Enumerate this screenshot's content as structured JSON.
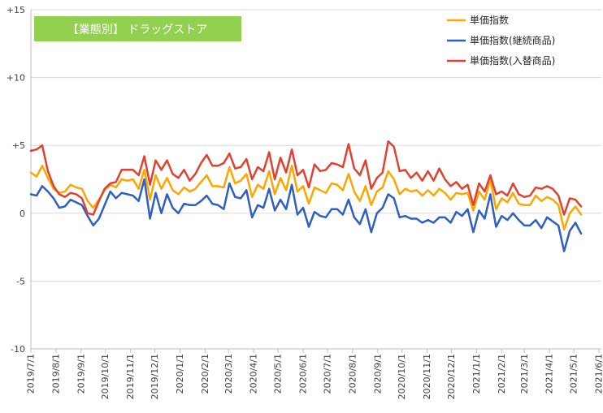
{
  "chart_data": {
    "type": "line",
    "title": "【業態別】 ドラッグストア",
    "title_box_color": "#92D050",
    "ylim": [
      -10,
      15
    ],
    "y_tick_labels": [
      "+15",
      "+10",
      "+5",
      "0",
      "-5",
      "-10"
    ],
    "xlim": [
      "2019/7/1",
      "2021/6/1"
    ],
    "x_tick_labels": [
      "2019/7/1",
      "2019/8/1",
      "2019/9/1",
      "2019/10/1",
      "2019/11/1",
      "2019/12/1",
      "2020/1/1",
      "2020/2/1",
      "2020/3/1",
      "2020/4/1",
      "2020/5/1",
      "2020/6/1",
      "2020/7/1",
      "2020/8/1",
      "2020/9/1",
      "2020/10/1",
      "2020/11/1",
      "2020/12/1",
      "2021/1/1",
      "2021/2/1",
      "2021/3/1",
      "2021/4/1",
      "2021/5/1",
      "2021/6/1"
    ],
    "grid": "horizontal",
    "legend_position": "top-right",
    "x": [
      "2019/7/1",
      "2019/7/8",
      "2019/7/15",
      "2019/7/22",
      "2019/7/29",
      "2019/8/5",
      "2019/8/12",
      "2019/8/19",
      "2019/8/26",
      "2019/9/2",
      "2019/9/9",
      "2019/9/16",
      "2019/9/23",
      "2019/9/30",
      "2019/10/7",
      "2019/10/14",
      "2019/10/21",
      "2019/10/28",
      "2019/11/4",
      "2019/11/11",
      "2019/11/18",
      "2019/11/25",
      "2019/12/2",
      "2019/12/9",
      "2019/12/16",
      "2019/12/23",
      "2019/12/30",
      "2020/1/6",
      "2020/1/13",
      "2020/1/20",
      "2020/1/27",
      "2020/2/3",
      "2020/2/10",
      "2020/2/17",
      "2020/2/24",
      "2020/3/2",
      "2020/3/9",
      "2020/3/16",
      "2020/3/23",
      "2020/3/30",
      "2020/4/6",
      "2020/4/13",
      "2020/4/20",
      "2020/4/27",
      "2020/5/4",
      "2020/5/11",
      "2020/5/18",
      "2020/5/25",
      "2020/6/1",
      "2020/6/8",
      "2020/6/15",
      "2020/6/22",
      "2020/6/29",
      "2020/7/6",
      "2020/7/13",
      "2020/7/20",
      "2020/7/27",
      "2020/8/3",
      "2020/8/10",
      "2020/8/17",
      "2020/8/24",
      "2020/8/31",
      "2020/9/7",
      "2020/9/14",
      "2020/9/21",
      "2020/9/28",
      "2020/10/5",
      "2020/10/12",
      "2020/10/19",
      "2020/10/26",
      "2020/11/2",
      "2020/11/9",
      "2020/11/16",
      "2020/11/23",
      "2020/11/30",
      "2020/12/7",
      "2020/12/14",
      "2020/12/21",
      "2020/12/28",
      "2021/1/4",
      "2021/1/11",
      "2021/1/18",
      "2021/1/25",
      "2021/2/1",
      "2021/2/8",
      "2021/2/15",
      "2021/2/22",
      "2021/3/1",
      "2021/3/8",
      "2021/3/15",
      "2021/3/22",
      "2021/3/29",
      "2021/4/5",
      "2021/4/12",
      "2021/4/19",
      "2021/4/26",
      "2021/5/3",
      "2021/5/10"
    ],
    "series": [
      {
        "name": "単価指数",
        "color": "#FFA500",
        "values": [
          3.0,
          2.7,
          3.5,
          2.6,
          1.8,
          1.5,
          1.6,
          2.1,
          1.9,
          1.8,
          0.9,
          0.4,
          1.0,
          1.7,
          2.1,
          1.9,
          2.5,
          2.4,
          2.5,
          1.8,
          3.2,
          1.0,
          2.8,
          1.8,
          2.6,
          1.7,
          1.4,
          1.9,
          1.6,
          1.8,
          2.3,
          2.8,
          2.0,
          2.0,
          1.9,
          3.4,
          2.2,
          2.4,
          2.9,
          1.2,
          2.1,
          1.8,
          3.1,
          1.4,
          2.6,
          1.7,
          3.5,
          1.6,
          2.0,
          0.7,
          1.9,
          1.7,
          1.5,
          2.2,
          2.1,
          1.7,
          2.9,
          1.6,
          0.9,
          2.0,
          0.6,
          1.6,
          1.9,
          3.1,
          2.5,
          1.4,
          1.8,
          1.6,
          1.7,
          1.3,
          1.7,
          1.3,
          1.8,
          1.5,
          1.0,
          1.5,
          1.4,
          1.5,
          0.2,
          1.6,
          1.0,
          2.5,
          0.3,
          1.1,
          0.8,
          1.5,
          0.7,
          0.6,
          0.6,
          1.3,
          0.9,
          1.2,
          1.0,
          0.6,
          -1.2,
          0.0,
          0.5,
          -0.1
        ]
      },
      {
        "name": "単価指数(継続商品)",
        "color": "#2E5FC1",
        "values": [
          1.4,
          1.3,
          2.0,
          1.6,
          1.1,
          0.4,
          0.5,
          1.0,
          0.8,
          0.6,
          -0.2,
          -0.9,
          -0.4,
          0.6,
          1.6,
          1.1,
          1.5,
          1.4,
          1.3,
          0.9,
          2.5,
          -0.4,
          1.5,
          0.0,
          1.4,
          0.4,
          0.0,
          0.7,
          0.6,
          0.6,
          0.9,
          1.3,
          0.7,
          0.6,
          0.3,
          2.2,
          1.2,
          1.1,
          1.7,
          -0.3,
          0.6,
          0.4,
          1.8,
          0.2,
          1.0,
          0.3,
          2.1,
          -0.1,
          0.4,
          -1.0,
          0.1,
          -0.2,
          -0.3,
          0.3,
          0.3,
          -0.1,
          1.0,
          -0.3,
          -0.8,
          0.3,
          -1.4,
          0.0,
          0.4,
          1.4,
          1.1,
          -0.3,
          -0.2,
          -0.4,
          -0.4,
          -0.7,
          -0.5,
          -0.7,
          -0.3,
          -0.3,
          -0.7,
          0.1,
          -0.2,
          0.3,
          -1.4,
          0.2,
          -0.4,
          1.4,
          -1.0,
          -0.2,
          -0.5,
          0.0,
          -0.5,
          -0.9,
          -0.9,
          -0.5,
          -1.1,
          -0.3,
          -0.6,
          -0.9,
          -2.8,
          -1.3,
          -0.7,
          -1.5
        ]
      },
      {
        "name": "単価指数(入替商品)",
        "color": "#E2412F",
        "values": [
          4.6,
          4.7,
          5.0,
          3.1,
          2.0,
          1.4,
          1.2,
          1.5,
          1.4,
          1.1,
          0.0,
          -0.1,
          0.9,
          1.8,
          2.2,
          2.3,
          3.2,
          3.2,
          3.2,
          2.8,
          4.2,
          2.1,
          3.9,
          3.2,
          3.9,
          2.9,
          2.6,
          3.2,
          2.4,
          2.9,
          3.7,
          4.3,
          3.5,
          3.5,
          3.7,
          4.4,
          3.3,
          3.4,
          4.0,
          2.5,
          3.4,
          3.1,
          4.5,
          2.5,
          4.1,
          3.0,
          4.7,
          2.8,
          3.2,
          1.9,
          3.6,
          3.1,
          3.2,
          3.7,
          3.6,
          3.4,
          5.1,
          3.3,
          2.8,
          3.9,
          1.8,
          2.6,
          3.0,
          5.3,
          4.9,
          3.1,
          3.2,
          2.6,
          3.0,
          2.4,
          3.1,
          2.4,
          3.3,
          2.5,
          2.0,
          2.3,
          1.8,
          2.1,
          0.6,
          2.2,
          1.6,
          2.8,
          1.4,
          1.6,
          1.3,
          2.2,
          1.4,
          1.2,
          1.3,
          1.9,
          1.8,
          2.0,
          1.8,
          1.3,
          -0.1,
          1.1,
          1.0,
          0.5
        ]
      }
    ]
  }
}
